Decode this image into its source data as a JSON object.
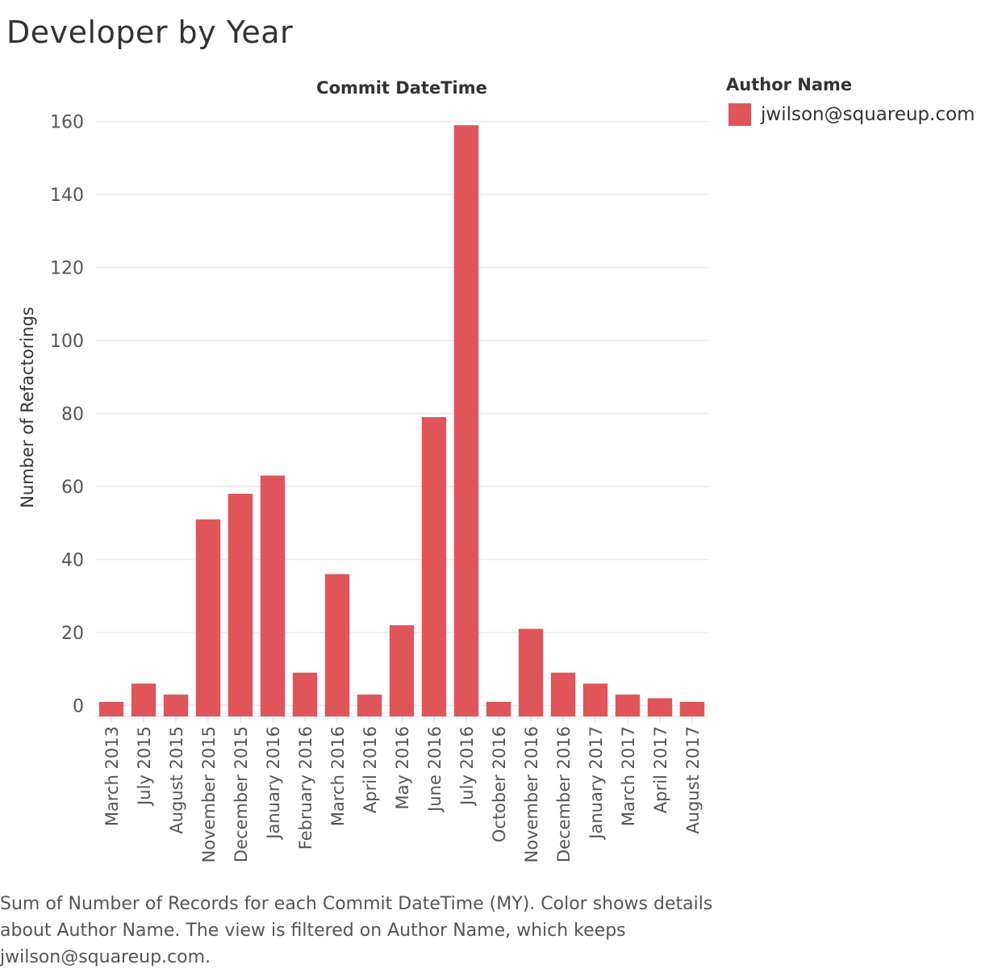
{
  "page": {
    "title": "Developer by Year"
  },
  "legend": {
    "title": "Author Name"
  },
  "caption": "Sum of Number of Records for each Commit DateTime (MY).  Color shows details about Author Name. The view is filtered on Author Name, which keeps jwilson@squareup.com.",
  "colors": {
    "bar": "#e0555a",
    "grid": "#ececec",
    "axis_text": "#555555"
  },
  "chart_data": {
    "type": "bar",
    "title": "Developer by Year",
    "xlabel": "Commit DateTime",
    "ylabel": "Number of Refactorings",
    "ylim": [
      -3,
      165
    ],
    "yticks": [
      0,
      20,
      40,
      60,
      80,
      100,
      120,
      140,
      160
    ],
    "grid": true,
    "legend_position": "top-right",
    "categories": [
      "March 2013",
      "July 2015",
      "August 2015",
      "November 2015",
      "December 2015",
      "January 2016",
      "February 2016",
      "March 2016",
      "April 2016",
      "May 2016",
      "June 2016",
      "July 2016",
      "October 2016",
      "November 2016",
      "December 2016",
      "January 2017",
      "March 2017",
      "April 2017",
      "August 2017"
    ],
    "series": [
      {
        "name": "jwilson@squareup.com",
        "values": [
          1,
          6,
          3,
          51,
          58,
          63,
          9,
          36,
          3,
          22,
          79,
          159,
          1,
          21,
          9,
          6,
          3,
          2,
          1
        ]
      }
    ]
  }
}
